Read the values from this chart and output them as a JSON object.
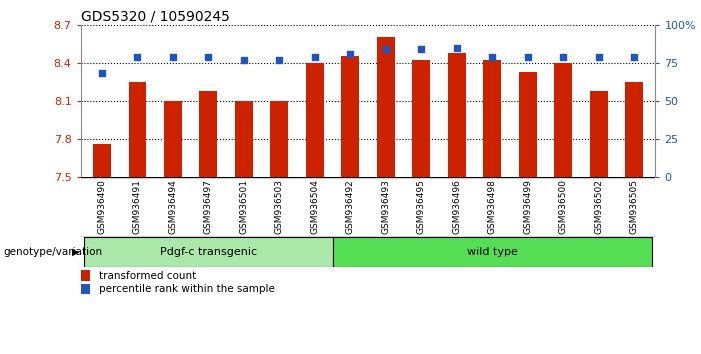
{
  "title": "GDS5320 / 10590245",
  "categories": [
    "GSM936490",
    "GSM936491",
    "GSM936494",
    "GSM936497",
    "GSM936501",
    "GSM936503",
    "GSM936504",
    "GSM936492",
    "GSM936493",
    "GSM936495",
    "GSM936496",
    "GSM936498",
    "GSM936499",
    "GSM936500",
    "GSM936502",
    "GSM936505"
  ],
  "bar_values": [
    7.76,
    8.25,
    8.1,
    8.18,
    8.1,
    8.1,
    8.4,
    8.45,
    8.6,
    8.42,
    8.48,
    8.42,
    8.33,
    8.4,
    8.18,
    8.25
  ],
  "dot_values": [
    68,
    79,
    79,
    79,
    77,
    77,
    79,
    81,
    84,
    84,
    85,
    79,
    79,
    79,
    79,
    79
  ],
  "bar_color": "#cc2200",
  "dot_color": "#2255bb",
  "ylim_left": [
    7.5,
    8.7
  ],
  "ylim_right": [
    0,
    100
  ],
  "yticks_left": [
    7.5,
    7.8,
    8.1,
    8.4,
    8.7
  ],
  "yticks_right": [
    0,
    25,
    50,
    75,
    100
  ],
  "ytick_labels_right": [
    "0",
    "25",
    "50",
    "75",
    "100%"
  ],
  "group1_label": "Pdgf-c transgenic",
  "group2_label": "wild type",
  "group1_count": 7,
  "group2_count": 9,
  "group1_color": "#aae8aa",
  "group2_color": "#55dd55",
  "genotype_label": "genotype/variation",
  "legend_bar_label": "transformed count",
  "legend_dot_label": "percentile rank within the sample",
  "background_color": "#ffffff",
  "plot_bg_color": "#ffffff",
  "grid_color": "#000000",
  "yaxis_left_color": "#cc2200",
  "yaxis_right_color": "#2255bb",
  "label_bg_color": "#dddddd",
  "figwidth": 7.01,
  "figheight": 3.54,
  "dpi": 100
}
